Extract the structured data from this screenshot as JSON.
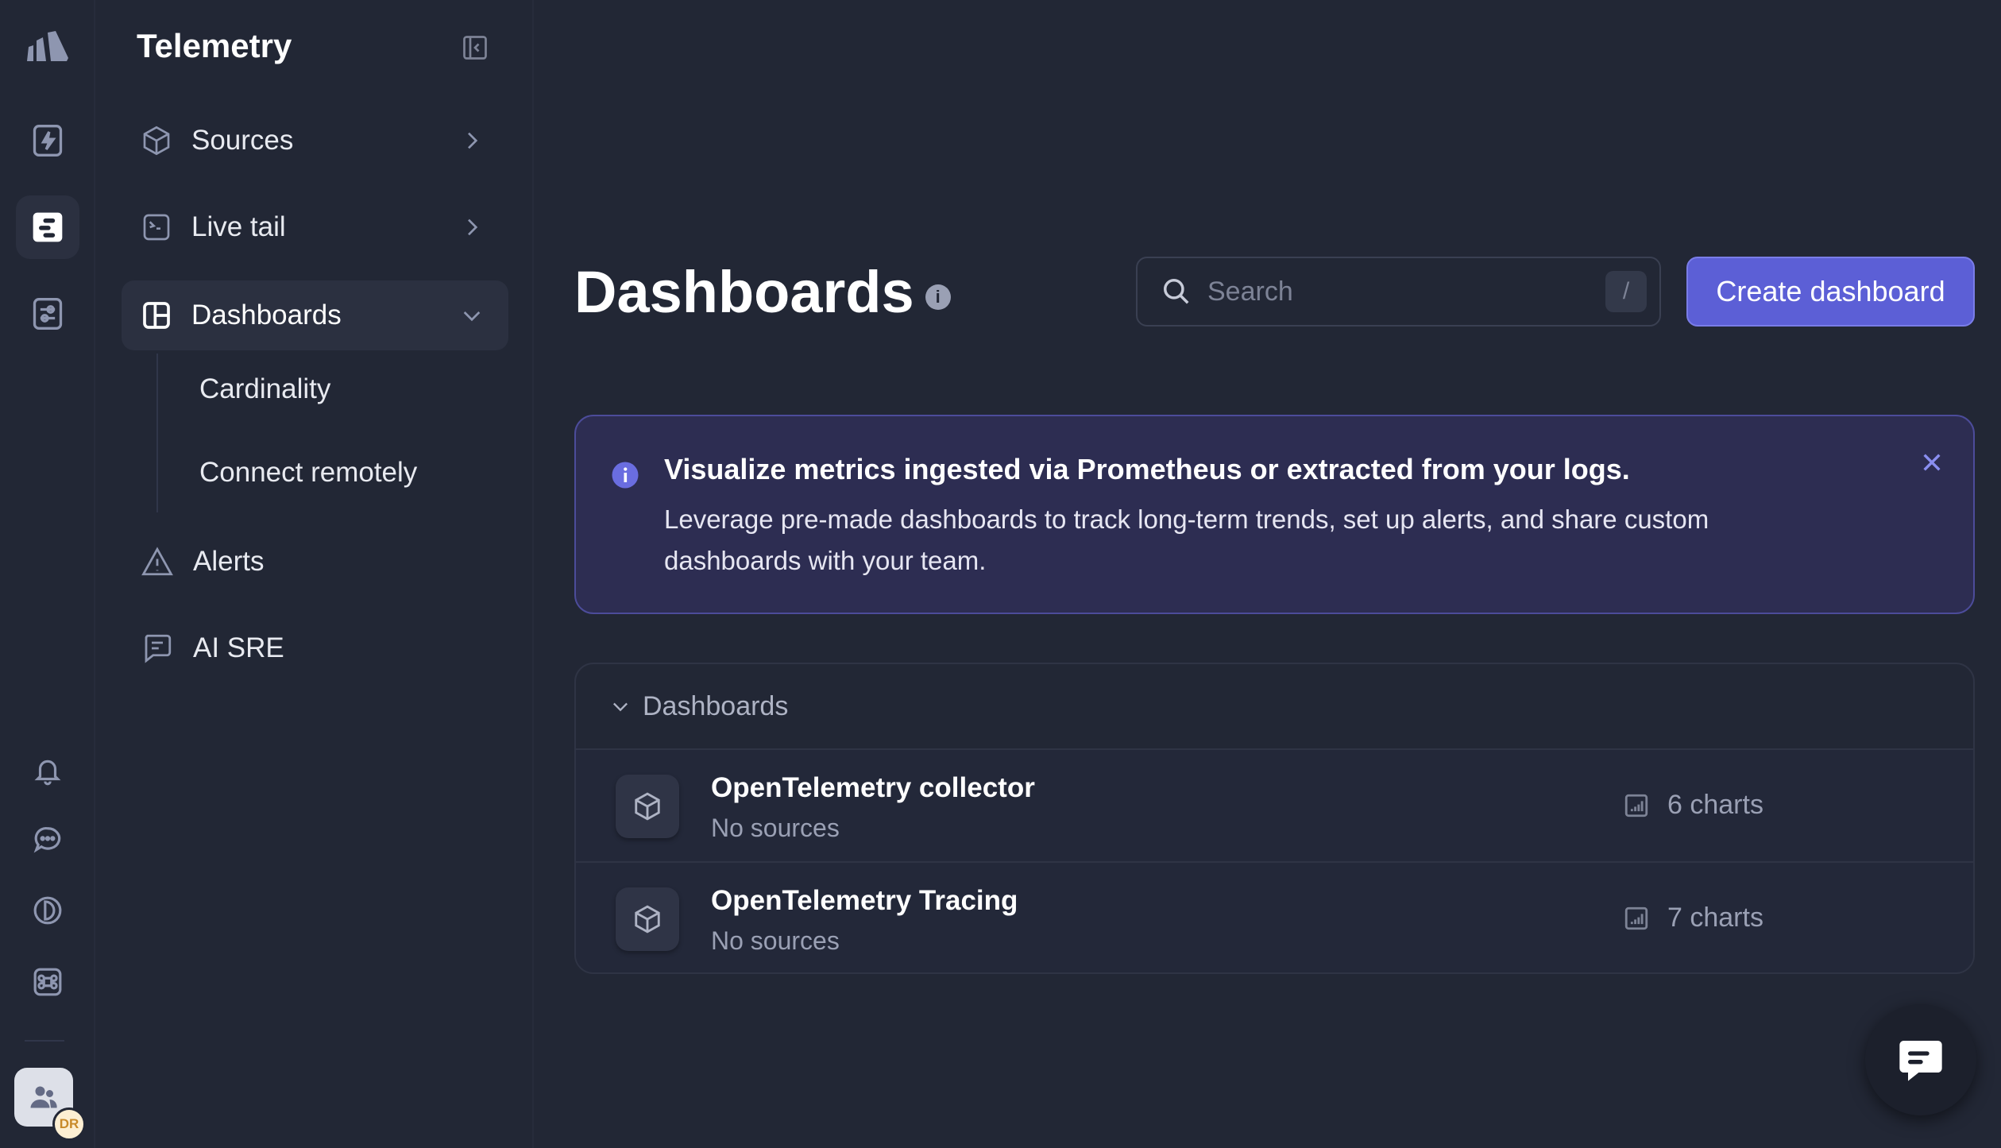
{
  "sidebar": {
    "title": "Telemetry",
    "items": [
      {
        "label": "Sources",
        "icon": "cube-icon"
      },
      {
        "label": "Live tail",
        "icon": "terminal-icon"
      },
      {
        "label": "Dashboards",
        "icon": "layout-icon",
        "expanded": true,
        "children": [
          {
            "label": "Cardinality"
          },
          {
            "label": "Connect remotely"
          }
        ]
      },
      {
        "label": "Alerts",
        "icon": "warning-icon"
      },
      {
        "label": "AI SRE",
        "icon": "message-icon"
      }
    ]
  },
  "rail": {
    "avatar_initials": "DR"
  },
  "main": {
    "title": "Dashboards",
    "search": {
      "placeholder": "Search",
      "shortcut": "/"
    },
    "create_label": "Create dashboard",
    "banner": {
      "title": "Visualize metrics ingested via Prometheus or extracted from your logs.",
      "text": "Leverage pre-made dashboards to track long-term trends, set up alerts, and share custom dashboards with your team."
    },
    "list": {
      "group": "Dashboards",
      "rows": [
        {
          "name": "OpenTelemetry collector",
          "sources": "No sources",
          "charts": "6 charts"
        },
        {
          "name": "OpenTelemetry Tracing",
          "sources": "No sources",
          "charts": "7 charts"
        }
      ]
    }
  },
  "colors": {
    "accent": "#5c5fd6",
    "background": "#222735",
    "banner": "#2d2d52"
  }
}
